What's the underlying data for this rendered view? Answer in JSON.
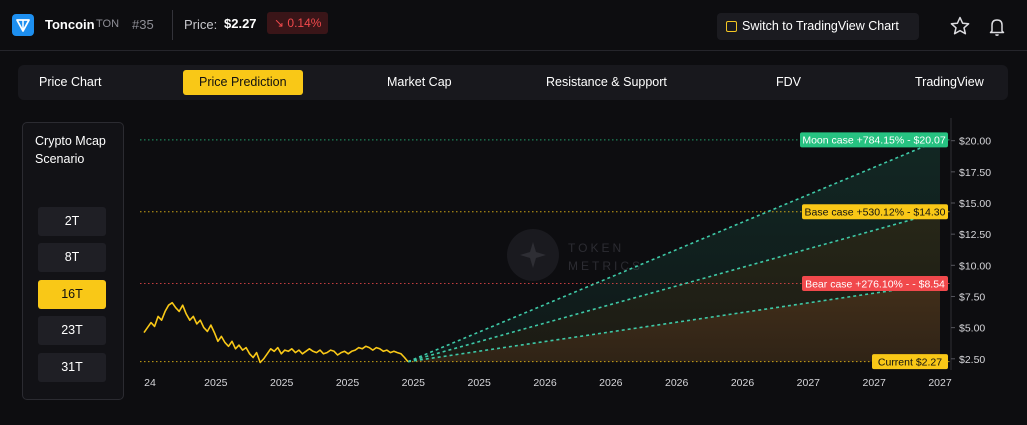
{
  "header": {
    "coin_name": "Toncoin",
    "coin_ticker": "TON",
    "rank": "#35",
    "price_label": "Price:",
    "price_value": "$2.27",
    "change": "0.14%",
    "change_arrow": "↘",
    "switch_button": "Switch to TradingView Chart",
    "colors": {
      "accent": "#f9c817",
      "negative": "#f1494c",
      "brand": "#1d8ff0"
    }
  },
  "tabs": [
    {
      "label": "Price Chart"
    },
    {
      "label": "Price Prediction",
      "active": true
    },
    {
      "label": "Market Cap"
    },
    {
      "label": "Resistance & Support"
    },
    {
      "label": "FDV"
    },
    {
      "label": "TradingView"
    }
  ],
  "scenario": {
    "title": "Crypto Mcap Scenario",
    "options": [
      {
        "label": "2T"
      },
      {
        "label": "8T"
      },
      {
        "label": "16T",
        "active": true
      },
      {
        "label": "23T"
      },
      {
        "label": "31T"
      }
    ]
  },
  "watermark": {
    "line1": "TOKEN",
    "line2": "METRICS"
  },
  "chart_data": {
    "type": "line",
    "y_ticks": [
      "$20.00",
      "$17.50",
      "$15.00",
      "$12.50",
      "$10.00",
      "$7.50",
      "$5.00",
      "$2.50"
    ],
    "x_ticks": [
      "24",
      "2025",
      "2025",
      "2025",
      "2025",
      "2025",
      "2026",
      "2026",
      "2026",
      "2026",
      "2027",
      "2027",
      "2027"
    ],
    "ylim": [
      1.6,
      21.5
    ],
    "history": [
      4.6,
      5.0,
      5.4,
      5.1,
      5.9,
      5.6,
      6.3,
      6.8,
      7.0,
      6.6,
      6.3,
      6.8,
      6.1,
      5.6,
      5.9,
      5.3,
      5.6,
      5.0,
      4.7,
      5.2,
      4.6,
      3.9,
      4.3,
      3.8,
      3.5,
      3.9,
      3.3,
      3.6,
      3.2,
      3.4,
      2.9,
      2.6,
      3.0,
      2.2,
      2.5,
      2.9,
      3.3,
      3.1,
      3.4,
      2.9,
      3.2,
      3.1,
      3.3,
      3.0,
      3.2,
      2.9,
      3.1,
      3.3,
      3.1,
      3.0,
      3.2,
      2.9,
      3.0,
      3.2,
      3.1,
      2.8,
      3.0,
      3.1,
      2.9,
      3.1,
      3.2,
      3.4,
      3.3,
      3.5,
      3.4,
      3.2,
      3.4,
      3.3,
      3.1,
      3.2,
      3.0,
      3.1,
      3.0,
      2.9,
      2.6,
      2.27
    ],
    "scenarios": [
      {
        "name": "Moon case",
        "label": "Moon case +784.15% - $20.07",
        "value": 20.07,
        "color": "#26c281"
      },
      {
        "name": "Base case",
        "label": "Base case +530.12% - $14.30",
        "value": 14.3,
        "color": "#f9c817"
      },
      {
        "name": "Bear case",
        "label": "Bear case +276.10% - - $8.54",
        "value": 8.54,
        "color": "#f1494c"
      }
    ],
    "current": {
      "label": "Current $2.27",
      "value": 2.27,
      "color": "#f9c817"
    }
  }
}
